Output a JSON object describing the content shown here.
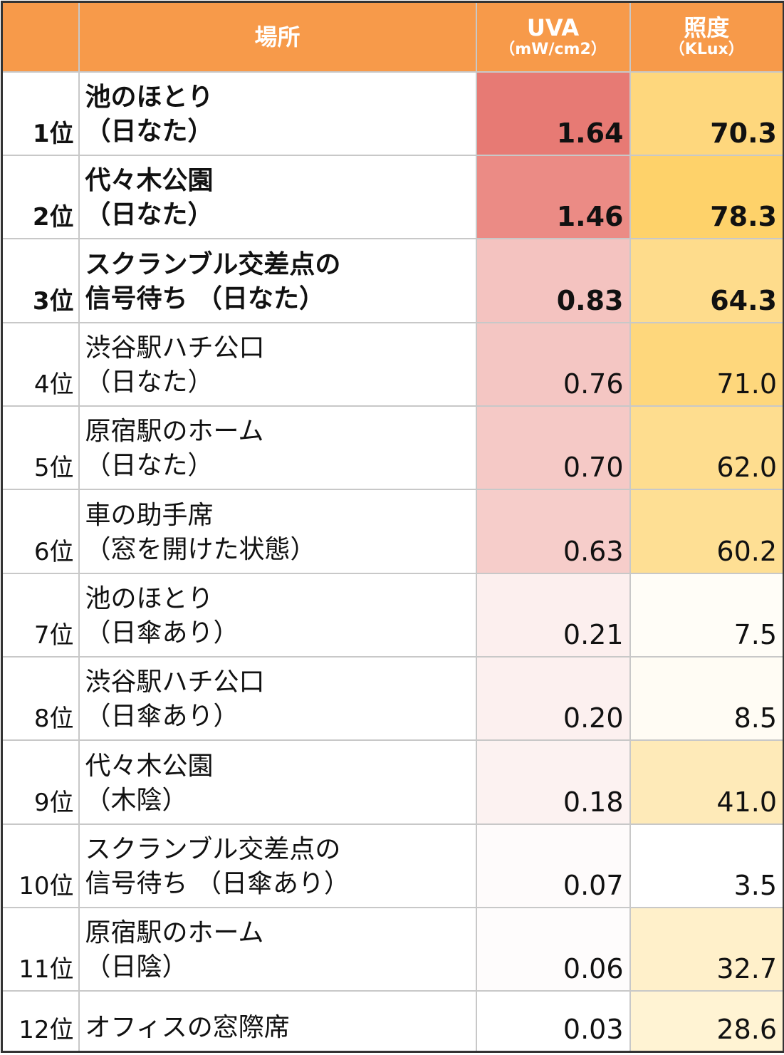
{
  "headers": {
    "rank": "",
    "place": "場所",
    "uva_title": "UVA",
    "uva_unit": "（mW/cm2）",
    "lux_title": "照度",
    "lux_unit": "（KLux）"
  },
  "colors": {
    "header_bg": "#f79a4a",
    "header_text": "#ffffff"
  },
  "rows": [
    {
      "rank": "1位",
      "place1": "池のほとり",
      "place2": "（日なた）",
      "uva": "1.64",
      "lux": "70.3",
      "bold": true,
      "uva_bg": "#e77a74",
      "lux_bg": "#fed77d"
    },
    {
      "rank": "2位",
      "place1": "代々木公園",
      "place2": "（日なた）",
      "uva": "1.46",
      "lux": "78.3",
      "bold": true,
      "uva_bg": "#eb8b85",
      "lux_bg": "#fed26a"
    },
    {
      "rank": "3位",
      "place1": "スクランブル交差点の",
      "place2": "信号待ち （日なた）",
      "uva": "0.83",
      "lux": "64.3",
      "bold": true,
      "uva_bg": "#f4c3c0",
      "lux_bg": "#fedc8c"
    },
    {
      "rank": "4位",
      "place1": "渋谷駅ハチ公口",
      "place2": "（日なた）",
      "uva": "0.76",
      "lux": "71.0",
      "bold": false,
      "uva_bg": "#f4c6c3",
      "lux_bg": "#fed77c"
    },
    {
      "rank": "5位",
      "place1": "原宿駅のホーム",
      "place2": "（日なた）",
      "uva": "0.70",
      "lux": "62.0",
      "bold": false,
      "uva_bg": "#f5c9c6",
      "lux_bg": "#fedd8f"
    },
    {
      "rank": "6位",
      "place1": "車の助手席",
      "place2": "（窓を開けた状態）",
      "uva": "0.63",
      "lux": "60.2",
      "bold": false,
      "uva_bg": "#f6cdca",
      "lux_bg": "#fedf94"
    },
    {
      "rank": "7位",
      "place1": "池のほとり",
      "place2": "（日傘あり）",
      "uva": "0.21",
      "lux": "7.5",
      "bold": false,
      "uva_bg": "#fcefee",
      "lux_bg": "#fffdf7"
    },
    {
      "rank": "8位",
      "place1": "渋谷駅ハチ公口",
      "place2": "（日傘あり）",
      "uva": "0.20",
      "lux": "8.5",
      "bold": false,
      "uva_bg": "#fcf0ef",
      "lux_bg": "#fffcf4"
    },
    {
      "rank": "9位",
      "place1": "代々木公園",
      "place2": "（木陰）",
      "uva": "0.18",
      "lux": "41.0",
      "bold": false,
      "uva_bg": "#fcf2f1",
      "lux_bg": "#feeab8"
    },
    {
      "rank": "10位",
      "place1": "スクランブル交差点の",
      "place2": "信号待ち （日傘あり）",
      "uva": "0.07",
      "lux": "3.5",
      "bold": false,
      "uva_bg": "#fefbfb",
      "lux_bg": "#ffffff"
    },
    {
      "rank": "11位",
      "place1": "原宿駅のホーム",
      "place2": "（日陰）",
      "uva": "0.06",
      "lux": "32.7",
      "bold": false,
      "uva_bg": "#fefcfc",
      "lux_bg": "#fff0ca"
    },
    {
      "rank": "12位",
      "place1": "オフィスの窓際席",
      "place2": "",
      "uva": "0.03",
      "lux": "28.6",
      "bold": false,
      "uva_bg": "#ffffff",
      "lux_bg": "#fff3d3"
    }
  ]
}
